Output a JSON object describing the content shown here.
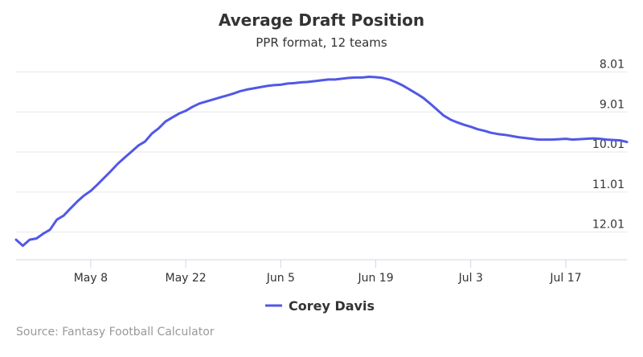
{
  "chart_data": {
    "type": "line",
    "title": "Average Draft Position",
    "subtitle": "PPR format, 12 teams",
    "source": "Source: Fantasy Football Calculator",
    "y_axis": {
      "ticks": [
        8.01,
        9.01,
        10.01,
        11.01,
        12.01
      ],
      "tick_labels": [
        "8.01",
        "9.01",
        "10.01",
        "11.01",
        "12.01"
      ],
      "reversed": true,
      "range": [
        7.9,
        12.7
      ],
      "side": "right"
    },
    "x_axis": {
      "range": [
        "2017-04-27",
        "2017-07-26"
      ],
      "ticks": [
        "2017-05-08",
        "2017-05-22",
        "2017-06-05",
        "2017-06-19",
        "2017-07-03",
        "2017-07-17"
      ],
      "tick_labels": [
        "May 8",
        "May 22",
        "Jun 5",
        "Jun 19",
        "Jul 3",
        "Jul 17"
      ]
    },
    "grid": true,
    "legend_position": "bottom-center",
    "series": [
      {
        "name": "Corey Davis",
        "color": "#5158e6",
        "points": [
          [
            "2017-04-27",
            12.2
          ],
          [
            "2017-04-28",
            12.35
          ],
          [
            "2017-04-29",
            12.2
          ],
          [
            "2017-04-30",
            12.17
          ],
          [
            "2017-05-01",
            12.05
          ],
          [
            "2017-05-02",
            11.95
          ],
          [
            "2017-05-03",
            11.7
          ],
          [
            "2017-05-04",
            11.6
          ],
          [
            "2017-05-05",
            11.42
          ],
          [
            "2017-05-06",
            11.25
          ],
          [
            "2017-05-07",
            11.1
          ],
          [
            "2017-05-08",
            10.98
          ],
          [
            "2017-05-09",
            10.82
          ],
          [
            "2017-05-10",
            10.65
          ],
          [
            "2017-05-11",
            10.48
          ],
          [
            "2017-05-12",
            10.3
          ],
          [
            "2017-05-13",
            10.15
          ],
          [
            "2017-05-14",
            10.0
          ],
          [
            "2017-05-15",
            9.85
          ],
          [
            "2017-05-16",
            9.75
          ],
          [
            "2017-05-17",
            9.55
          ],
          [
            "2017-05-18",
            9.42
          ],
          [
            "2017-05-19",
            9.25
          ],
          [
            "2017-05-20",
            9.15
          ],
          [
            "2017-05-21",
            9.05
          ],
          [
            "2017-05-22",
            8.98
          ],
          [
            "2017-05-23",
            8.88
          ],
          [
            "2017-05-24",
            8.8
          ],
          [
            "2017-05-25",
            8.75
          ],
          [
            "2017-05-26",
            8.7
          ],
          [
            "2017-05-27",
            8.65
          ],
          [
            "2017-05-28",
            8.6
          ],
          [
            "2017-05-29",
            8.55
          ],
          [
            "2017-05-30",
            8.49
          ],
          [
            "2017-05-31",
            8.45
          ],
          [
            "2017-06-01",
            8.42
          ],
          [
            "2017-06-02",
            8.39
          ],
          [
            "2017-06-03",
            8.36
          ],
          [
            "2017-06-04",
            8.34
          ],
          [
            "2017-06-05",
            8.33
          ],
          [
            "2017-06-06",
            8.3
          ],
          [
            "2017-06-07",
            8.29
          ],
          [
            "2017-06-08",
            8.27
          ],
          [
            "2017-06-09",
            8.26
          ],
          [
            "2017-06-10",
            8.24
          ],
          [
            "2017-06-11",
            8.22
          ],
          [
            "2017-06-12",
            8.2
          ],
          [
            "2017-06-13",
            8.2
          ],
          [
            "2017-06-14",
            8.18
          ],
          [
            "2017-06-15",
            8.16
          ],
          [
            "2017-06-16",
            8.15
          ],
          [
            "2017-06-17",
            8.15
          ],
          [
            "2017-06-18",
            8.13
          ],
          [
            "2017-06-19",
            8.14
          ],
          [
            "2017-06-20",
            8.16
          ],
          [
            "2017-06-21",
            8.2
          ],
          [
            "2017-06-22",
            8.27
          ],
          [
            "2017-06-23",
            8.35
          ],
          [
            "2017-06-24",
            8.45
          ],
          [
            "2017-06-25",
            8.55
          ],
          [
            "2017-06-26",
            8.66
          ],
          [
            "2017-06-27",
            8.8
          ],
          [
            "2017-06-28",
            8.95
          ],
          [
            "2017-06-29",
            9.1
          ],
          [
            "2017-06-30",
            9.2
          ],
          [
            "2017-07-01",
            9.27
          ],
          [
            "2017-07-02",
            9.33
          ],
          [
            "2017-07-03",
            9.38
          ],
          [
            "2017-07-04",
            9.44
          ],
          [
            "2017-07-05",
            9.48
          ],
          [
            "2017-07-06",
            9.53
          ],
          [
            "2017-07-07",
            9.56
          ],
          [
            "2017-07-08",
            9.58
          ],
          [
            "2017-07-09",
            9.61
          ],
          [
            "2017-07-10",
            9.64
          ],
          [
            "2017-07-11",
            9.66
          ],
          [
            "2017-07-12",
            9.68
          ],
          [
            "2017-07-13",
            9.7
          ],
          [
            "2017-07-14",
            9.7
          ],
          [
            "2017-07-15",
            9.7
          ],
          [
            "2017-07-16",
            9.69
          ],
          [
            "2017-07-17",
            9.68
          ],
          [
            "2017-07-18",
            9.7
          ],
          [
            "2017-07-19",
            9.69
          ],
          [
            "2017-07-20",
            9.68
          ],
          [
            "2017-07-21",
            9.67
          ],
          [
            "2017-07-22",
            9.68
          ],
          [
            "2017-07-23",
            9.7
          ],
          [
            "2017-07-24",
            9.71
          ],
          [
            "2017-07-25",
            9.72
          ],
          [
            "2017-07-26",
            9.76
          ]
        ]
      }
    ]
  }
}
